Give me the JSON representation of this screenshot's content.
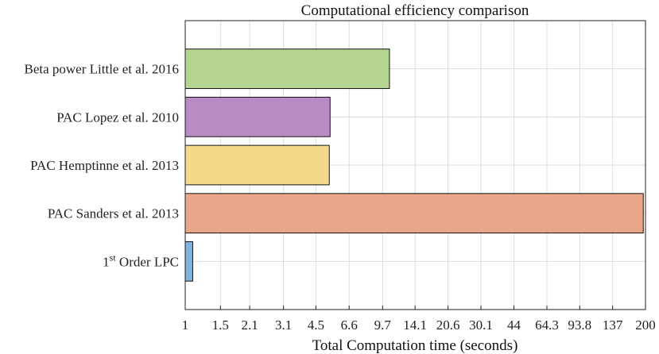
{
  "chart_data": {
    "type": "bar",
    "orientation": "horizontal",
    "title": "Computational efficiency comparison",
    "xlabel": "Total Computation time (seconds)",
    "ylabel": "",
    "x_scale": "log",
    "xlim": [
      1,
      200
    ],
    "x_ticks": [
      1,
      1.5,
      2.1,
      3.1,
      4.5,
      6.6,
      9.7,
      14.1,
      20.6,
      30.1,
      44,
      64.3,
      93.8,
      137,
      200
    ],
    "x_tick_labels": [
      "1",
      "1.5",
      "2.1",
      "3.1",
      "4.5",
      "6.6",
      "9.7",
      "14.1",
      "20.6",
      "30.1",
      "44",
      "64.3",
      "93.8",
      "137",
      "200"
    ],
    "grid": true,
    "categories": [
      {
        "label": "Beta power Little et al. 2016",
        "value": 10.5,
        "color": "#b5d591"
      },
      {
        "label": "PAC Lopez et al. 2010",
        "value": 5.3,
        "color": "#b98bc4"
      },
      {
        "label": "PAC Hemptinne et al. 2013",
        "value": 5.25,
        "color": "#f5d98b"
      },
      {
        "label": "PAC Sanders et al. 2013",
        "value": 195,
        "color": "#e9a68a"
      },
      {
        "label": "Order LPC",
        "label_prefix": "1",
        "label_superscript": "st",
        "value": 1.09,
        "color": "#7fb5e0"
      }
    ]
  }
}
